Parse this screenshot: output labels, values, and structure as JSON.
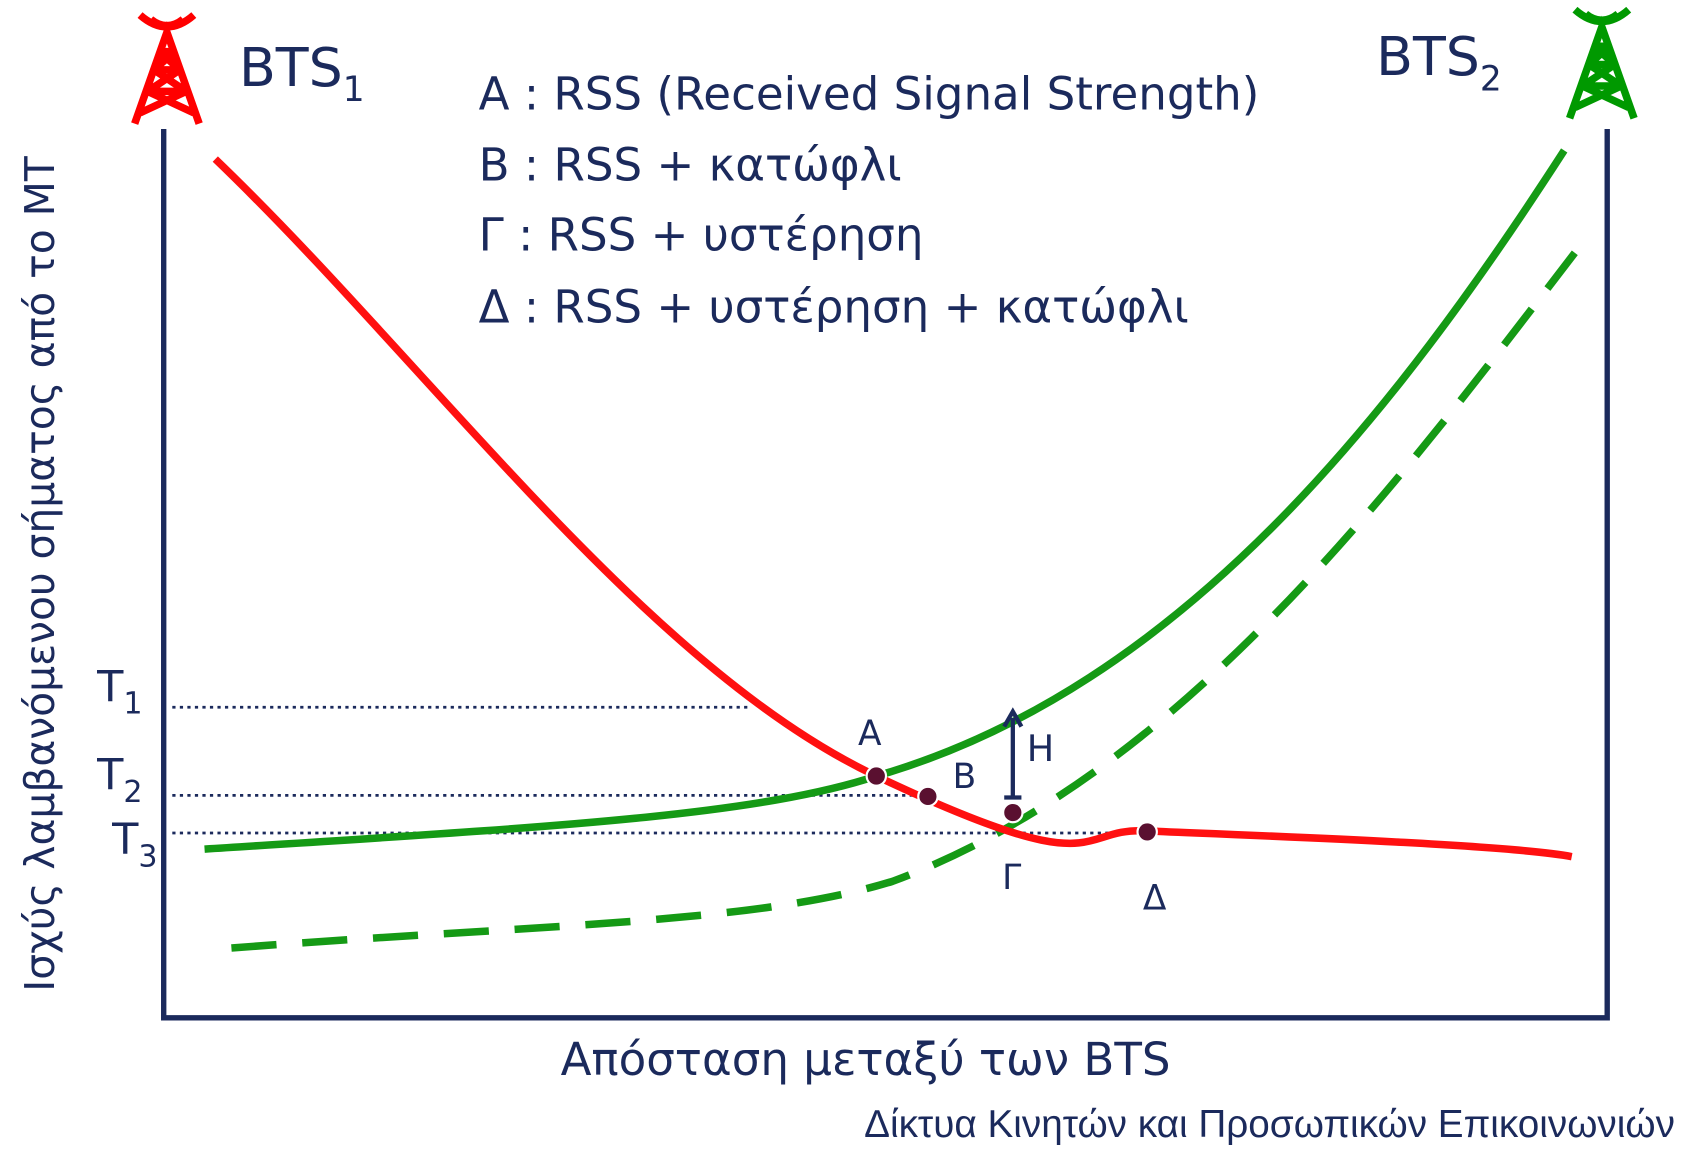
{
  "towers": [
    {
      "name": "BTS",
      "sub": "1"
    },
    {
      "name": "BTS",
      "sub": "2"
    }
  ],
  "legend": [
    "A : RSS (Received Signal Strength)",
    "B : RSS + κατώφλι",
    "Γ : RSS + υστέρηση",
    "Δ : RSS + υστέρηση + κατώφλι"
  ],
  "thresholds": [
    {
      "name": "T",
      "sub": "1"
    },
    {
      "name": "T",
      "sub": "2"
    },
    {
      "name": "T",
      "sub": "3"
    }
  ],
  "points": [
    "A",
    "B",
    "Γ",
    "Δ"
  ],
  "hysteresis_label": "H",
  "y_axis_label": "Ισχύς λαμβανόμενου σήματος από το MT",
  "x_axis_label": "Απόσταση μεταξύ των BTS",
  "footer": "Δίκτυα Κινητών και Προσωπικών Επικοινωνιών"
}
